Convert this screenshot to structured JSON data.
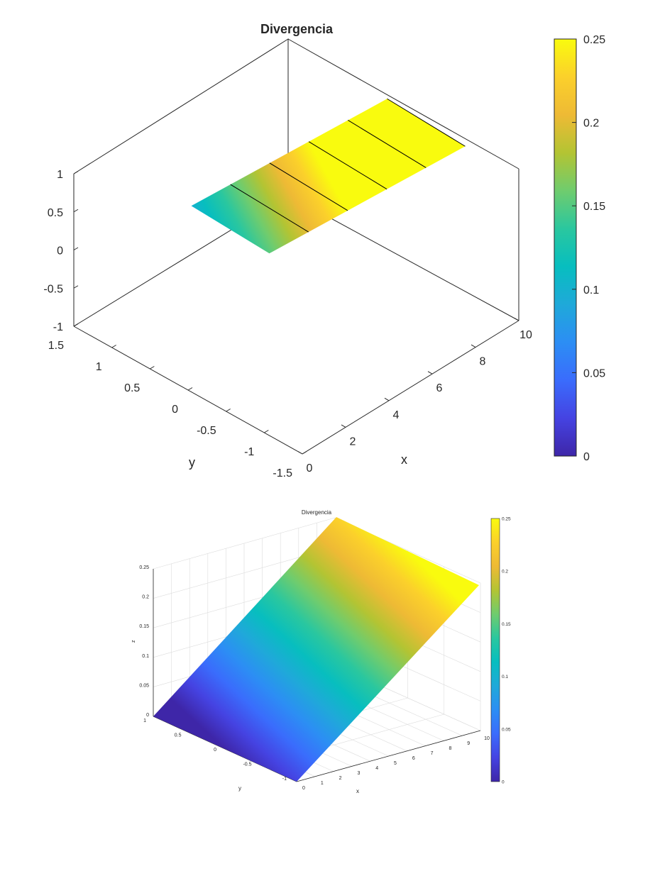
{
  "chart_data": [
    {
      "type": "surface",
      "title": "Divergencia",
      "xlabel": "x",
      "ylabel": "y",
      "zlabel": "",
      "view": "2D-contour-like top surface at z=0 (fill colored by value)",
      "xlim": [
        0,
        10
      ],
      "ylim": [
        -1.5,
        1.5
      ],
      "zlim": [
        -1,
        1
      ],
      "x_ticks": [
        "0",
        "2",
        "4",
        "6",
        "8",
        "10"
      ],
      "y_ticks": [
        "-1.5",
        "-1",
        "-0.5",
        "0",
        "0.5",
        "1",
        "1.5"
      ],
      "z_ticks": [
        "-1",
        "-0.5",
        "0",
        "0.5",
        "1"
      ],
      "surface_x_range": [
        0,
        10
      ],
      "surface_y_range": [
        -1,
        1
      ],
      "value_function": "c = 0.025 * x",
      "contour_levels_x": [
        2,
        4,
        6,
        8,
        10
      ],
      "colorbar": {
        "clim": [
          0,
          0.25
        ],
        "ticks": [
          "0",
          "0.05",
          "0.1",
          "0.15",
          "0.2",
          "0.25"
        ]
      },
      "colormap": "parula",
      "grid": false
    },
    {
      "type": "surface",
      "title": "Divergencia",
      "xlabel": "x",
      "ylabel": "y",
      "zlabel": "z",
      "xlim": [
        0,
        10
      ],
      "ylim": [
        -1,
        1
      ],
      "zlim": [
        0,
        0.25
      ],
      "x_ticks": [
        "0",
        "1",
        "2",
        "3",
        "4",
        "5",
        "6",
        "7",
        "8",
        "9",
        "10"
      ],
      "y_ticks": [
        "-1",
        "-0.5",
        "0",
        "0.5",
        "1"
      ],
      "z_ticks": [
        "0",
        "0.05",
        "0.1",
        "0.15",
        "0.2",
        "0.25"
      ],
      "value_function": "z = 0.025 * x",
      "colorbar": {
        "clim": [
          0,
          0.25
        ],
        "ticks": [
          "0",
          "0.05",
          "0.1",
          "0.15",
          "0.2",
          "0.25"
        ]
      },
      "colormap": "parula",
      "grid": true
    }
  ]
}
